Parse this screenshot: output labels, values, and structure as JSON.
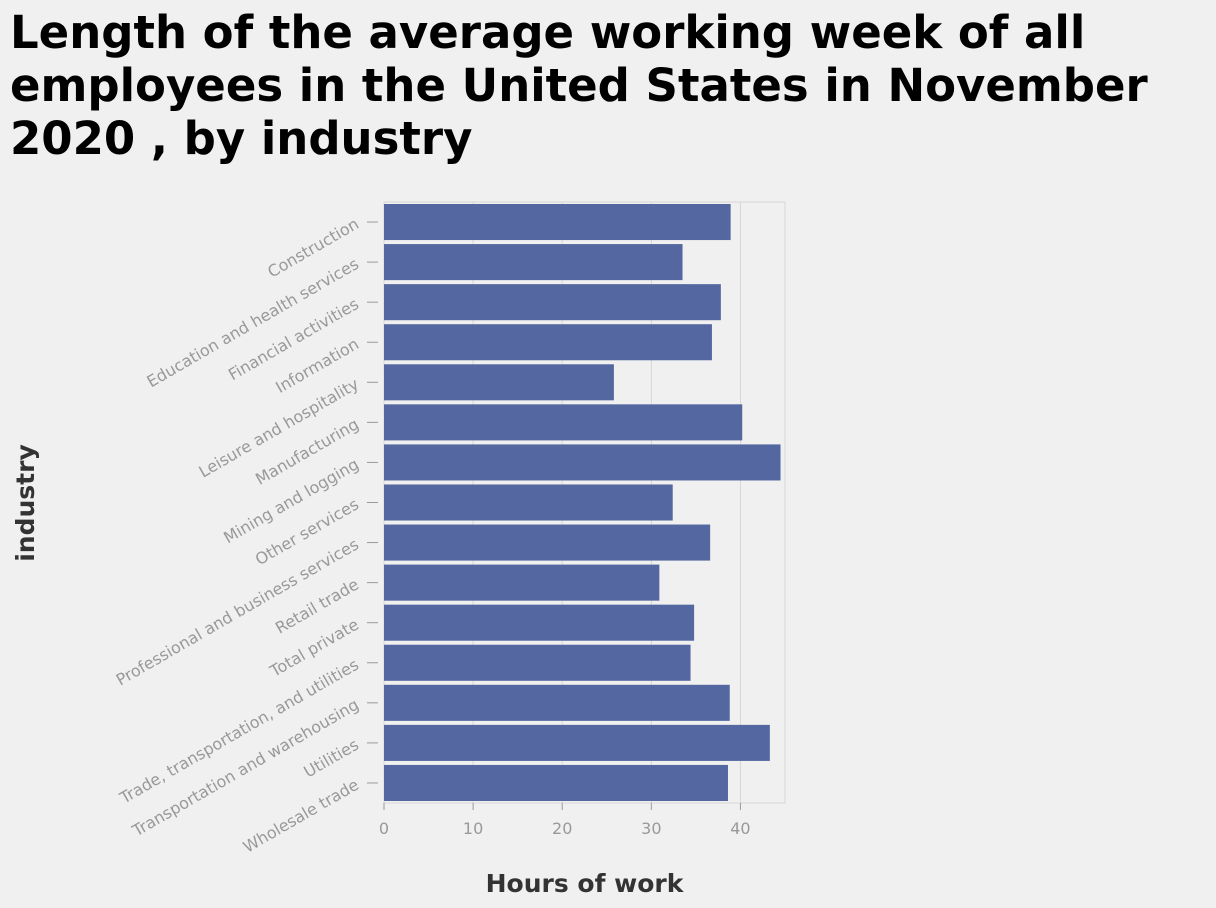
{
  "chart_data": {
    "type": "bar",
    "orientation": "horizontal",
    "title": "Length of the average working week of all employees in the United States in November 2020 , by industry",
    "xlabel": "Hours of work",
    "ylabel": "industry",
    "xlim": [
      0,
      45
    ],
    "xticks": [
      0,
      10,
      20,
      30,
      40
    ],
    "grid": true,
    "bar_color": "#5567a0",
    "categories": [
      "Construction",
      "Education and health services",
      "Financial activities",
      "Information",
      "Leisure and hospitality",
      "Manufacturing",
      "Mining and logging",
      "Other services",
      "Professional and business services",
      "Retail trade",
      "Total private",
      "Trade, transportation, and utilities",
      "Transportation and warehousing",
      "Utilities",
      "Wholesale trade"
    ],
    "values": [
      38.9,
      33.5,
      37.8,
      36.8,
      25.8,
      40.2,
      44.5,
      32.4,
      36.6,
      30.9,
      34.8,
      34.4,
      38.8,
      43.3,
      38.6
    ]
  }
}
